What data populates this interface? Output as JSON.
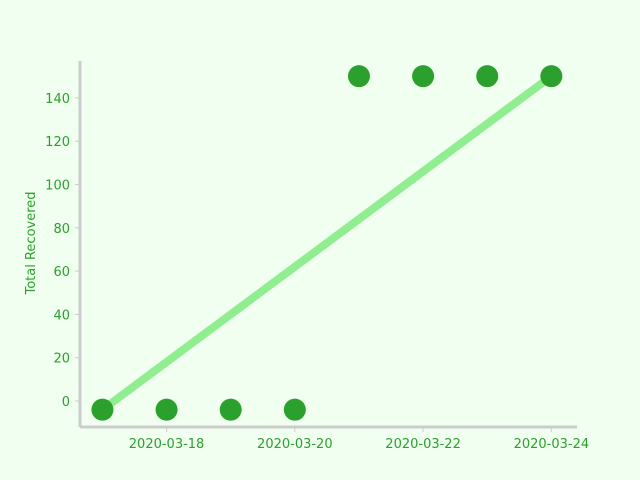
{
  "chart_data": {
    "type": "scatter",
    "title": "",
    "xlabel": "",
    "ylabel": "Total Recovered",
    "x": [
      "2020-03-17",
      "2020-03-18",
      "2020-03-19",
      "2020-03-20",
      "2020-03-21",
      "2020-03-22",
      "2020-03-23",
      "2020-03-24"
    ],
    "y": [
      -4,
      -4,
      -4,
      -4,
      150,
      150,
      150,
      150
    ],
    "trend_line": {
      "x": [
        "2020-03-17",
        "2020-03-24"
      ],
      "y": [
        -4,
        150
      ]
    },
    "x_ticks": [
      "2020-03-18",
      "2020-03-20",
      "2020-03-22",
      "2020-03-24"
    ],
    "y_ticks": [
      0,
      20,
      40,
      60,
      80,
      100,
      120,
      140
    ],
    "xlim": [
      "2020-03-16.65",
      "2020-03-24.4"
    ],
    "ylim": [
      -12,
      157
    ],
    "grid": false,
    "colors": {
      "points": "#2ca02c",
      "trend": "#90ee90",
      "axis": "#cccccc",
      "text": "#2ca02c",
      "background": "#f0fff0"
    }
  }
}
